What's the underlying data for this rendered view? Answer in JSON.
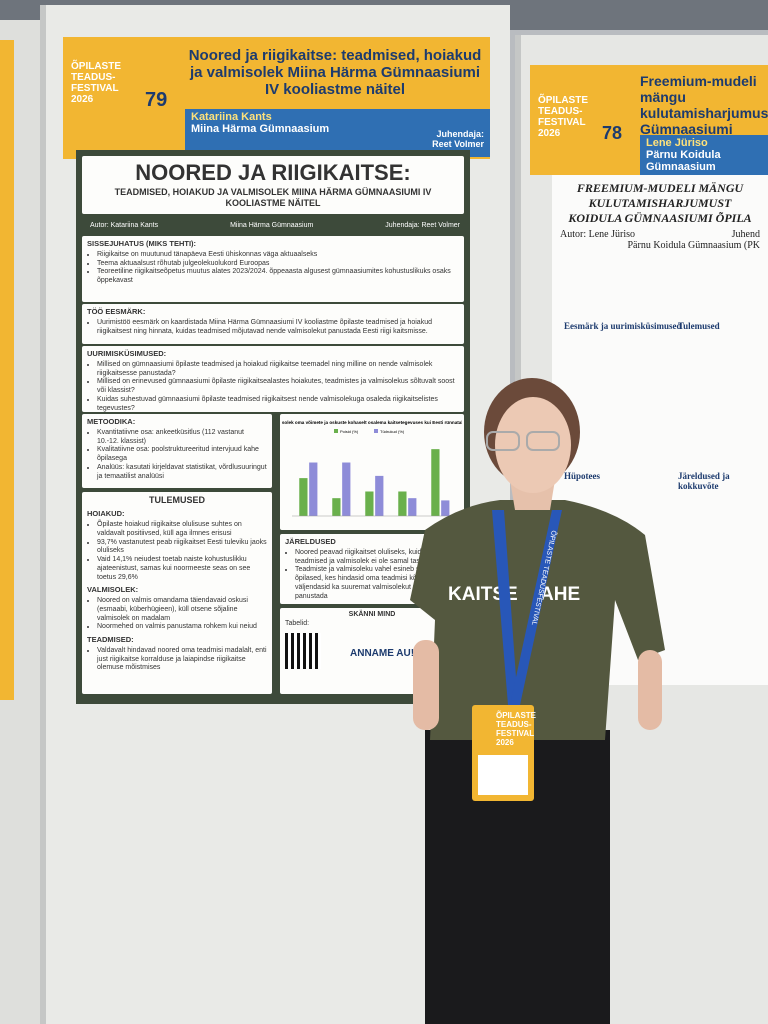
{
  "left_poster": {
    "festival": [
      "ÕPILASTE",
      "TEADUS-",
      "FESTIVAL",
      "2026"
    ],
    "number": "79",
    "title": "Noored ja riigikaitse: teadmised, hoiakud ja valmisolek Miina Härma Gümnaasiumi IV kooliastme näitel",
    "author": "Katariina Kants",
    "school": "Miina Härma Gümnaasium",
    "supervisor_label": "Juhendaja:",
    "supervisor": "Reet Volmer",
    "heading": "NOORED JA RIIGIKAITSE:",
    "subheading": "TEADMISED, HOIAKUD JA VALMISOLEK MIINA HÄRMA GÜMNAASIUMI IV KOOLIASTME NÄITEL",
    "byline": [
      "Autor: Katariina Kants",
      "Miina Härma Gümnaasium",
      "Juhendaja: Reet Volmer"
    ],
    "sections": [
      {
        "title": "SISSEJUHATUS (MIKS TEHTI):",
        "items": [
          "Riigikaitse on muutunud tänapäeva Eesti ühiskonnas väga aktuaalseks",
          "Teema aktuaalsust rõhutab julgeolekuolukord Euroopas",
          "Teoreetiline riigikaitseõpetus muutus alates 2023/2024. õppeaasta algusest gümnaasiumites kohustuslikuks osaks õppekavast"
        ]
      },
      {
        "title": "TÖÖ EESMÄRK:",
        "items": [
          "Uurimistöö eesmärk on kaardistada Miina Härma Gümnaasiumi IV kooliastme õpilaste teadmised ja hoiakud riigikaitsest ning hinnata, kuidas teadmised mõjutavad nende valmisolekut panustada Eesti riigi kaitsmisse."
        ]
      },
      {
        "title": "UURIMISKÜSIMUSED:",
        "items": [
          "Millised on gümnaasiumi õpilaste teadmised ja hoiakud riigikaitse teemadel ning milline on nende valmisolek riigikaitsesse panustada?",
          "Millised on erinevused gümnaasiumi õpilaste riigikaitsealastes hoiakutes, teadmistes ja valmisolekus sõltuvalt soost või klassist?",
          "Kuidas suhestuvad gümnaasiumi õpilaste teadmised riigikaitsest nende valmisolekuga osaleda riigikaitselistes tegevustes?"
        ]
      },
      {
        "title": "METOODIKA:",
        "items": [
          "Kvantitatiivne osa: ankeetküsitlus (112 vastanut 10.-12. klassist)",
          "Kvalitatiivne osa: poolstruktureeritud intervjuud kahe õpilasega",
          "Analüüs: kasutati kirjeldavat statistikat, võrdlusuuringut ja temaatilist analüüsi"
        ]
      }
    ],
    "results_title": "TULEMUSED",
    "results": [
      {
        "title": "HOIAKUD:",
        "items": [
          "Õpilaste hoiakud riigikaitse olulisuse suhtes on valdavalt positiivsed, küll aga ilmnes erisusi",
          "93,7% vastanutest peab riigikaitset Eesti tuleviku jaoks oluliseks",
          "Vaid 14,1% neiudest toetab naiste kohustuslikku ajateenistust, samas kui noormeeste seas on see toetus 29,6%"
        ]
      },
      {
        "title": "VALMISOLEK:",
        "items": [
          "Noored on valmis omandama täiendavaid oskusi (esmaabi, küberhügieen), küll otsene sõjaline valmisolek on madalam",
          "Noormehed on valmis panustama rohkem kui neiud"
        ]
      },
      {
        "title": "TEADMISED:",
        "items": [
          "Valdavalt hindavad noored oma teadmisi madalalt, enti just riigikaitse korralduse ja laiapindse riigikaitse olemuse mõistmises"
        ]
      }
    ],
    "conclusions": {
      "title": "JÄRELDUSED",
      "items": [
        "Noored peavad riigikaitset oluliseks, kuid nende teadmised ja valmisolek ei ole samal tasemel",
        "Teadmiste ja valmisoleku vahel esineb seos – õpilased, kes hindasid oma teadmisi kõrgemalt, väljendasid ka suuremat valmisolekut riigikaitsesse panustada"
      ]
    },
    "scan": "SKÄNNI MIND",
    "tables": "Tabelid:",
    "honor": "ANNAME AU!",
    "chart_data": {
      "type": "bar",
      "title": "Noorte valmisolek oma võimete ja oskuste kohaselt osalema kaitsetegevuses kui Eesti rünnatakse sõjaliselt",
      "categories": [
        null,
        null,
        null,
        null,
        null
      ],
      "series": [
        {
          "name": "Poisid (%)",
          "color": "#6ab04c",
          "values": [
            17,
            8,
            11,
            11,
            30
          ]
        },
        {
          "name": "Tüdrukud (%)",
          "color": "#8e8cd8",
          "values": [
            24,
            24,
            18,
            8,
            7
          ]
        }
      ],
      "ylim": [
        0,
        35
      ]
    }
  },
  "right_poster": {
    "festival": [
      "ÕPILASTE",
      "TEADUS-",
      "FESTIVAL",
      "2026"
    ],
    "number": "78",
    "title": "Freemium-mudeli mängu kulutamisharjumus Gümnaasiumi õpilas",
    "author": "Lene Jüriso",
    "school": "Pärnu Koidula Gümnaasium",
    "heading": [
      "FREEMIUM-MUDELI MÄNGU",
      "KULUTAMISHARJUMUST",
      "KOIDULA GÜMNAASIUMI ÕPILA"
    ],
    "byline": "Autor: Lene Jüriso",
    "byline2": "Juhend",
    "school_line": "Pärnu Koidula Gümnaasium (PK",
    "sections": [
      "Eesmärk ja uurimisküsimused",
      "Tulemused",
      "Hüpotees",
      "Järeldused ja kokkuvõte"
    ]
  },
  "shirt": [
    "KAITSE",
    "AHE"
  ],
  "lanyard": "ÕPILASTE TEADUSFESTIVAL",
  "badge": [
    "ÕPILASTE",
    "TEADUS-",
    "FESTIVAL",
    "2026"
  ]
}
